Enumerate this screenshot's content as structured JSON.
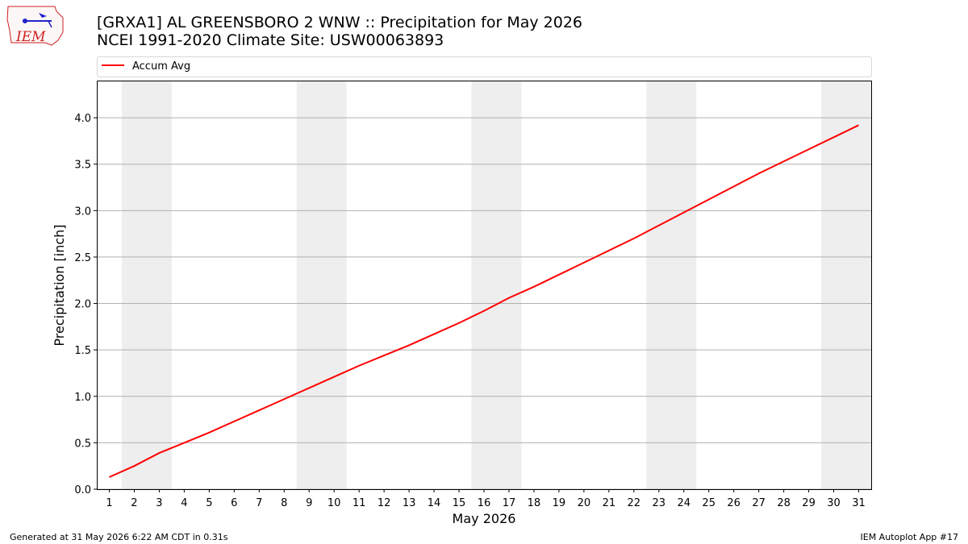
{
  "header": {
    "title_line1": "[GRXA1] AL GREENSBORO 2 WNW :: Precipitation for May 2026",
    "title_line2": "NCEI 1991-2020 Climate Site: USW00063893"
  },
  "logo": {
    "text": "IEM"
  },
  "footer": {
    "generated": "Generated at 31 May 2026 6:22 AM CDT in 0.31s",
    "app": "IEM Autoplot App #17"
  },
  "colors": {
    "line": "#ff0000",
    "weekend_band": "#eeeeee",
    "grid": "#b0b0b0",
    "logo": "#cc2222"
  },
  "chart_data": {
    "type": "line",
    "xlabel": "May 2026",
    "ylabel": "Precipitation [inch]",
    "x": [
      1,
      2,
      3,
      4,
      5,
      6,
      7,
      8,
      9,
      10,
      11,
      12,
      13,
      14,
      15,
      16,
      17,
      18,
      19,
      20,
      21,
      22,
      23,
      24,
      25,
      26,
      27,
      28,
      29,
      30,
      31
    ],
    "xlim": [
      0.5,
      31.5
    ],
    "ylim": [
      0.0,
      4.4
    ],
    "yticks": [
      0.0,
      0.5,
      1.0,
      1.5,
      2.0,
      2.5,
      3.0,
      3.5,
      4.0
    ],
    "ytick_labels": [
      "0.0",
      "0.5",
      "1.0",
      "1.5",
      "2.0",
      "2.5",
      "3.0",
      "3.5",
      "4.0"
    ],
    "series": [
      {
        "name": "Accum Avg",
        "values": [
          0.13,
          0.25,
          0.39,
          0.5,
          0.61,
          0.73,
          0.85,
          0.97,
          1.09,
          1.21,
          1.33,
          1.44,
          1.55,
          1.67,
          1.79,
          1.92,
          2.06,
          2.18,
          2.31,
          2.44,
          2.57,
          2.7,
          2.84,
          2.98,
          3.12,
          3.26,
          3.4,
          3.53,
          3.66,
          3.79,
          3.92
        ]
      }
    ],
    "weekend_days": [
      [
        2,
        3
      ],
      [
        9,
        10
      ],
      [
        16,
        17
      ],
      [
        23,
        24
      ],
      [
        30,
        31
      ]
    ],
    "grid": "horizontal",
    "legend": "top"
  }
}
